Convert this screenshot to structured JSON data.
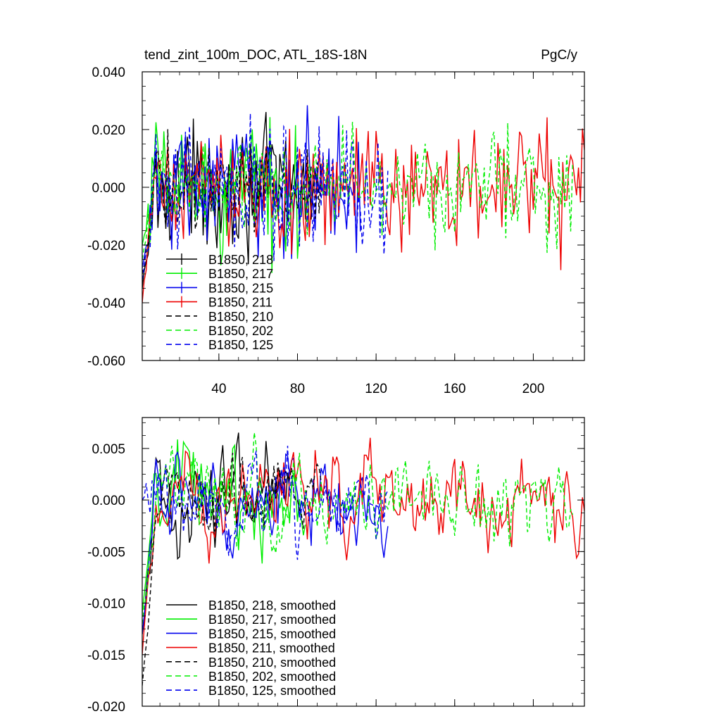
{
  "chart_data": [
    {
      "id": "top",
      "type": "line",
      "title": "tend_zint_100m_DOC, ATL_18S-18N",
      "units": "PgC/y",
      "xlim": [
        1,
        226
      ],
      "ylim": [
        -0.06,
        0.04
      ],
      "yticks": [
        {
          "v": 0.04,
          "label": "0.040"
        },
        {
          "v": 0.02,
          "label": "0.020"
        },
        {
          "v": 0.0,
          "label": "0.000"
        },
        {
          "v": -0.02,
          "label": "-0.020"
        },
        {
          "v": -0.04,
          "label": "-0.040"
        },
        {
          "v": -0.06,
          "label": "-0.060"
        }
      ],
      "xticks": [
        {
          "v": 40,
          "label": "40"
        },
        {
          "v": 80,
          "label": "80"
        },
        {
          "v": 120,
          "label": "120"
        },
        {
          "v": 160,
          "label": "160"
        },
        {
          "v": 200,
          "label": "200"
        }
      ],
      "legend_position": "bottom-left",
      "series": [
        {
          "name": "B1850, 218",
          "color": "#000000",
          "dash": false,
          "length": 90,
          "amp": 0.01,
          "start": -0.035
        },
        {
          "name": "B1850, 217",
          "color": "#00ee00",
          "dash": false,
          "length": 82,
          "amp": 0.011,
          "start": -0.02
        },
        {
          "name": "B1850, 215",
          "color": "#0000ee",
          "dash": false,
          "length": 112,
          "amp": 0.011,
          "start": -0.028
        },
        {
          "name": "B1850, 211",
          "color": "#ee0000",
          "dash": false,
          "length": 226,
          "amp": 0.01,
          "start": -0.04
        },
        {
          "name": "B1850, 210",
          "color": "#000000",
          "dash": true,
          "length": 92,
          "amp": 0.008,
          "start": -0.03
        },
        {
          "name": "B1850, 202",
          "color": "#00ee00",
          "dash": true,
          "length": 220,
          "amp": 0.009,
          "start": -0.025
        },
        {
          "name": "B1850, 125",
          "color": "#0000ee",
          "dash": true,
          "length": 126,
          "amp": 0.011,
          "start": -0.032
        }
      ]
    },
    {
      "id": "bottom",
      "type": "line",
      "title": "",
      "xlim": [
        1,
        226
      ],
      "ylim": [
        -0.02,
        0.008
      ],
      "yticks": [
        {
          "v": 0.005,
          "label": "0.005"
        },
        {
          "v": 0.0,
          "label": "0.000"
        },
        {
          "v": -0.005,
          "label": "-0.005"
        },
        {
          "v": -0.01,
          "label": "-0.010"
        },
        {
          "v": -0.015,
          "label": "-0.015"
        },
        {
          "v": -0.02,
          "label": "-0.020"
        }
      ],
      "xticks": [
        {
          "v": 40,
          "label": ""
        },
        {
          "v": 80,
          "label": ""
        },
        {
          "v": 120,
          "label": ""
        },
        {
          "v": 160,
          "label": ""
        },
        {
          "v": 200,
          "label": ""
        }
      ],
      "legend_position": "bottom-left",
      "series": [
        {
          "name": "B1850, 218, smoothed",
          "color": "#000000",
          "dash": false,
          "length": 76,
          "amp": 0.0022,
          "start": -0.013
        },
        {
          "name": "B1850, 217, smoothed",
          "color": "#00ee00",
          "dash": false,
          "length": 84,
          "amp": 0.0022,
          "start": -0.011
        },
        {
          "name": "B1850, 215, smoothed",
          "color": "#0000ee",
          "dash": false,
          "length": 126,
          "amp": 0.002,
          "start": -0.013
        },
        {
          "name": "B1850, 211, smoothed",
          "color": "#ee0000",
          "dash": false,
          "length": 226,
          "amp": 0.0022,
          "start": -0.015
        },
        {
          "name": "B1850, 210, smoothed",
          "color": "#000000",
          "dash": true,
          "length": 92,
          "amp": 0.0018,
          "start": -0.018
        },
        {
          "name": "B1850, 202, smoothed",
          "color": "#00ee00",
          "dash": true,
          "length": 220,
          "amp": 0.002,
          "start": -0.012
        },
        {
          "name": "B1850, 125, smoothed",
          "color": "#0000ee",
          "dash": true,
          "length": 126,
          "amp": 0.0022,
          "start": 0.0
        }
      ]
    }
  ]
}
